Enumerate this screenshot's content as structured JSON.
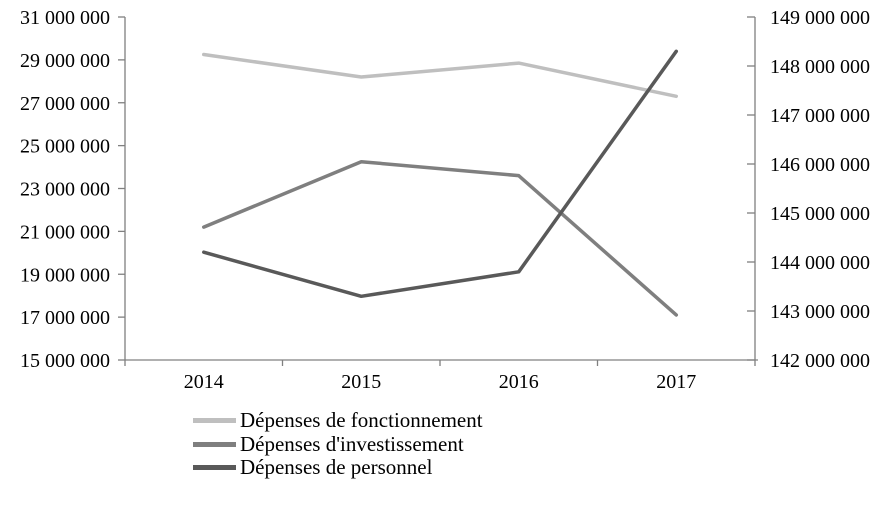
{
  "page": {
    "background": "#ffffff"
  },
  "chart_data": {
    "type": "line",
    "title": "",
    "xlabel": "",
    "ylabel": "",
    "grid": false,
    "legend_position": "bottom-left",
    "categories": [
      "2014",
      "2015",
      "2016",
      "2017"
    ],
    "series": [
      {
        "name": "Dépenses de fonctionnement",
        "axis": "left",
        "color": "#bfbfbf",
        "values": [
          29250000,
          28200000,
          28850000,
          27300000
        ]
      },
      {
        "name": "Dépenses d'investissement",
        "axis": "left",
        "color": "#7f7f7f",
        "values": [
          21200000,
          24250000,
          23600000,
          17100000
        ]
      },
      {
        "name": "Dépenses de personnel",
        "axis": "right",
        "color": "#595959",
        "values": [
          144200000,
          143300000,
          143800000,
          148300000
        ]
      }
    ],
    "left_axis": {
      "min": 15000000,
      "max": 31000000,
      "step": 2000000,
      "tick_labels": [
        "15 000 000",
        "17 000 000",
        "19 000 000",
        "21 000 000",
        "23 000 000",
        "25 000 000",
        "27 000 000",
        "29 000 000",
        "31 000 000"
      ]
    },
    "right_axis": {
      "min": 142000000,
      "max": 149000000,
      "step": 1000000,
      "tick_labels": [
        "142 000 000",
        "143 000 000",
        "144 000 000",
        "145 000 000",
        "146 000 000",
        "147 000 000",
        "148 000 000",
        "149 000 000"
      ]
    },
    "axis_color": "#808080",
    "text_color": "#000000"
  }
}
